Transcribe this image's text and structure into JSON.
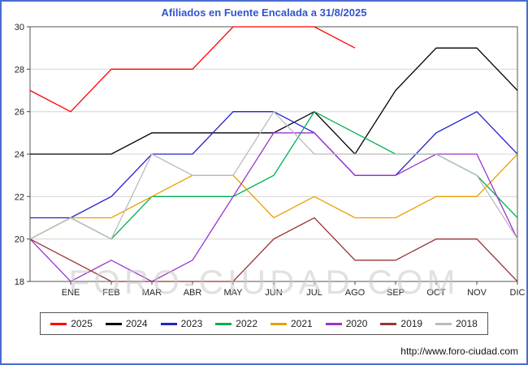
{
  "page": {
    "title": "Afiliados en Fuente Encalada a 31/8/2025",
    "watermark": "FORO-CIUDAD.COM",
    "url": "http://www.foro-ciudad.com",
    "border_color": "#4a6cd0",
    "title_color": "#3355cc"
  },
  "chart_data": {
    "type": "line",
    "title": "Afiliados en Fuente Encalada a 31/8/2025",
    "xlabel": "",
    "ylabel": "",
    "ylim": [
      18,
      30
    ],
    "yticks": [
      18,
      20,
      22,
      24,
      26,
      28,
      30
    ],
    "grid": true,
    "legend_position": "bottom",
    "categories": [
      "",
      "ENE",
      "FEB",
      "MAR",
      "ABR",
      "MAY",
      "JUN",
      "JUL",
      "AGO",
      "SEP",
      "OCT",
      "NOV",
      "DIC"
    ],
    "series": [
      {
        "name": "2025",
        "color": "#ff0000",
        "values": [
          27,
          26,
          28,
          28,
          28,
          30,
          30,
          30,
          29,
          null,
          null,
          null,
          null
        ]
      },
      {
        "name": "2024",
        "color": "#000000",
        "values": [
          24,
          24,
          24,
          25,
          25,
          25,
          25,
          26,
          24,
          27,
          29,
          29,
          27
        ]
      },
      {
        "name": "2023",
        "color": "#2222cc",
        "values": [
          21,
          21,
          22,
          24,
          24,
          26,
          26,
          25,
          23,
          23,
          25,
          26,
          24
        ]
      },
      {
        "name": "2022",
        "color": "#00b050",
        "values": [
          20,
          21,
          20,
          22,
          22,
          22,
          23,
          26,
          25,
          24,
          24,
          23,
          21
        ]
      },
      {
        "name": "2021",
        "color": "#e8a000",
        "values": [
          20,
          21,
          21,
          22,
          23,
          23,
          21,
          22,
          21,
          21,
          22,
          22,
          24
        ]
      },
      {
        "name": "2020",
        "color": "#9933cc",
        "values": [
          20,
          18,
          19,
          18,
          19,
          22,
          25,
          25,
          23,
          23,
          24,
          24,
          20
        ]
      },
      {
        "name": "2019",
        "color": "#993333",
        "values": [
          20,
          19,
          18,
          18,
          18,
          18,
          20,
          21,
          19,
          19,
          20,
          20,
          18
        ]
      },
      {
        "name": "2018",
        "color": "#bbbbbb",
        "values": [
          20,
          21,
          20,
          24,
          23,
          23,
          26,
          24,
          24,
          24,
          24,
          23,
          20
        ]
      }
    ]
  }
}
